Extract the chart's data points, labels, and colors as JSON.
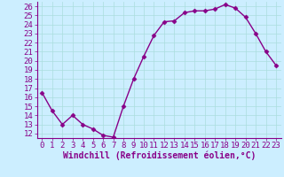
{
  "x": [
    0,
    1,
    2,
    3,
    4,
    5,
    6,
    7,
    8,
    9,
    10,
    11,
    12,
    13,
    14,
    15,
    16,
    17,
    18,
    19,
    20,
    21,
    22,
    23
  ],
  "y": [
    16.5,
    14.5,
    13.0,
    14.0,
    13.0,
    12.5,
    11.8,
    11.6,
    15.0,
    18.0,
    20.5,
    22.8,
    24.3,
    24.4,
    25.3,
    25.5,
    25.5,
    25.7,
    26.2,
    25.8,
    24.8,
    23.0,
    21.0,
    19.5
  ],
  "color": "#880088",
  "bg_color": "#cceeff",
  "grid_color": "#aadddd",
  "xlabel": "Windchill (Refroidissement éolien,°C)",
  "ylim": [
    11.5,
    26.5
  ],
  "xlim": [
    -0.5,
    23.5
  ],
  "yticks": [
    12,
    13,
    14,
    15,
    16,
    17,
    18,
    19,
    20,
    21,
    22,
    23,
    24,
    25,
    26
  ],
  "xticks": [
    0,
    1,
    2,
    3,
    4,
    5,
    6,
    7,
    8,
    9,
    10,
    11,
    12,
    13,
    14,
    15,
    16,
    17,
    18,
    19,
    20,
    21,
    22,
    23
  ],
  "marker": "D",
  "markersize": 2.5,
  "linewidth": 1.0,
  "tick_fontsize": 6.5,
  "xlabel_fontsize": 7.0
}
